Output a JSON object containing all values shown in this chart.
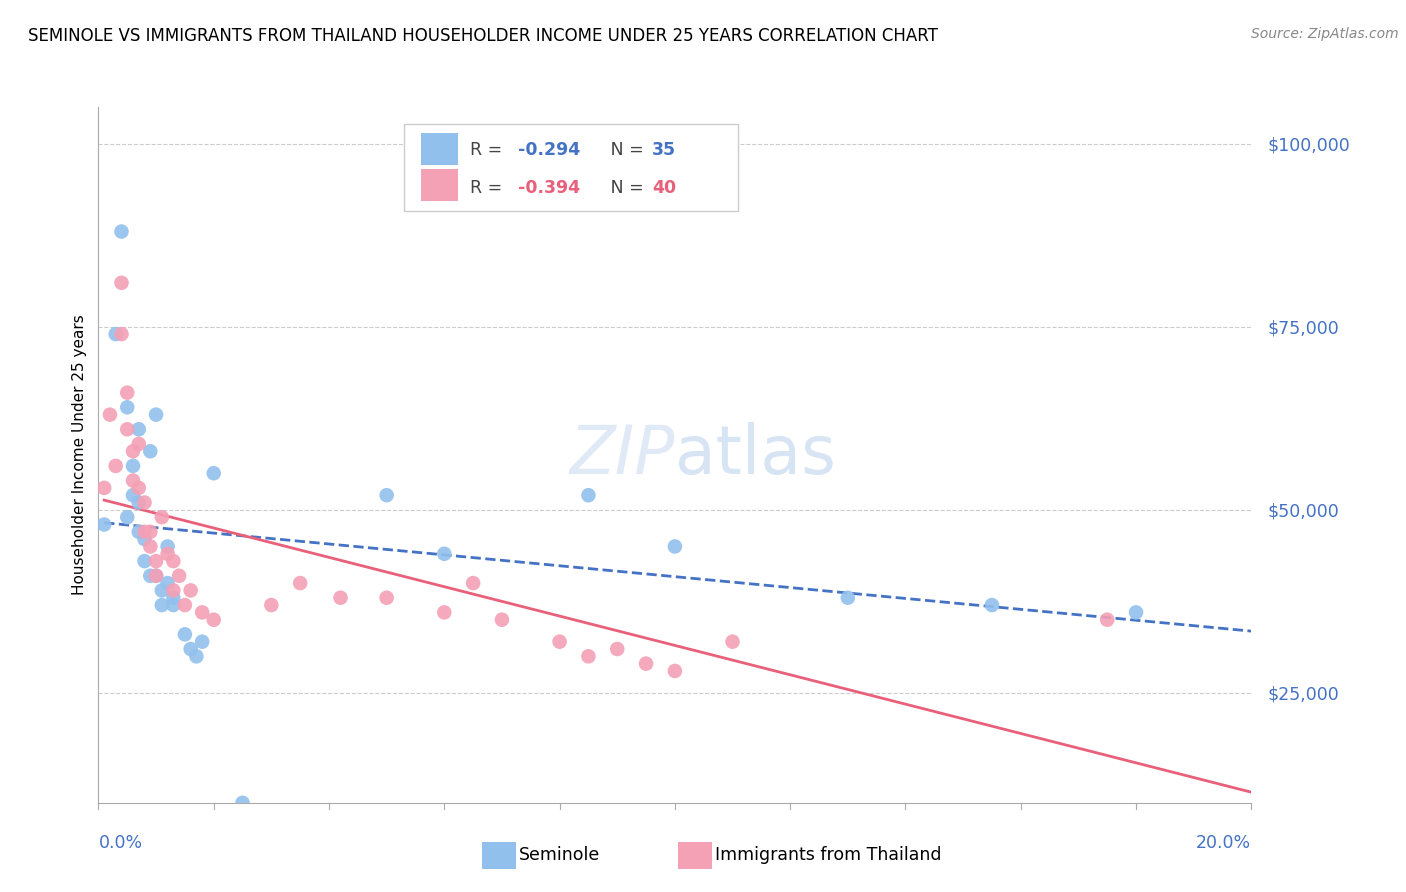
{
  "title": "SEMINOLE VS IMMIGRANTS FROM THAILAND HOUSEHOLDER INCOME UNDER 25 YEARS CORRELATION CHART",
  "source": "Source: ZipAtlas.com",
  "ylabel": "Householder Income Under 25 years",
  "ytick_labels": [
    "$25,000",
    "$50,000",
    "$75,000",
    "$100,000"
  ],
  "ytick_values": [
    25000,
    50000,
    75000,
    100000
  ],
  "xlim": [
    0.0,
    0.2
  ],
  "ylim": [
    10000,
    105000
  ],
  "watermark_zip": "ZIP",
  "watermark_atlas": "atlas",
  "seminole_R": -0.294,
  "seminole_N": 35,
  "thailand_R": -0.394,
  "thailand_N": 40,
  "seminole_color": "#92C0ED",
  "thailand_color": "#F4A0B5",
  "seminole_line_color": "#4472C4",
  "thailand_line_color": "#E8607A",
  "seminole_x": [
    0.001,
    0.003,
    0.004,
    0.005,
    0.005,
    0.006,
    0.006,
    0.007,
    0.007,
    0.007,
    0.008,
    0.008,
    0.009,
    0.009,
    0.01,
    0.01,
    0.011,
    0.011,
    0.012,
    0.012,
    0.013,
    0.013,
    0.015,
    0.016,
    0.017,
    0.018,
    0.02,
    0.025,
    0.05,
    0.06,
    0.085,
    0.1,
    0.13,
    0.155,
    0.18
  ],
  "seminole_y": [
    48000,
    74000,
    88000,
    49000,
    64000,
    56000,
    52000,
    61000,
    51000,
    47000,
    46000,
    43000,
    58000,
    41000,
    63000,
    41000,
    39000,
    37000,
    45000,
    40000,
    38000,
    37000,
    33000,
    31000,
    30000,
    32000,
    55000,
    10000,
    52000,
    44000,
    52000,
    45000,
    38000,
    37000,
    36000
  ],
  "thailand_x": [
    0.001,
    0.002,
    0.003,
    0.004,
    0.004,
    0.005,
    0.005,
    0.006,
    0.006,
    0.007,
    0.007,
    0.008,
    0.008,
    0.009,
    0.009,
    0.01,
    0.01,
    0.011,
    0.012,
    0.013,
    0.013,
    0.014,
    0.015,
    0.016,
    0.018,
    0.02,
    0.03,
    0.035,
    0.042,
    0.05,
    0.06,
    0.065,
    0.07,
    0.08,
    0.085,
    0.09,
    0.095,
    0.1,
    0.11,
    0.175
  ],
  "thailand_y": [
    53000,
    63000,
    56000,
    81000,
    74000,
    66000,
    61000,
    58000,
    54000,
    59000,
    53000,
    51000,
    47000,
    45000,
    47000,
    43000,
    41000,
    49000,
    44000,
    39000,
    43000,
    41000,
    37000,
    39000,
    36000,
    35000,
    37000,
    40000,
    38000,
    38000,
    36000,
    40000,
    35000,
    32000,
    30000,
    31000,
    29000,
    28000,
    32000,
    35000
  ]
}
